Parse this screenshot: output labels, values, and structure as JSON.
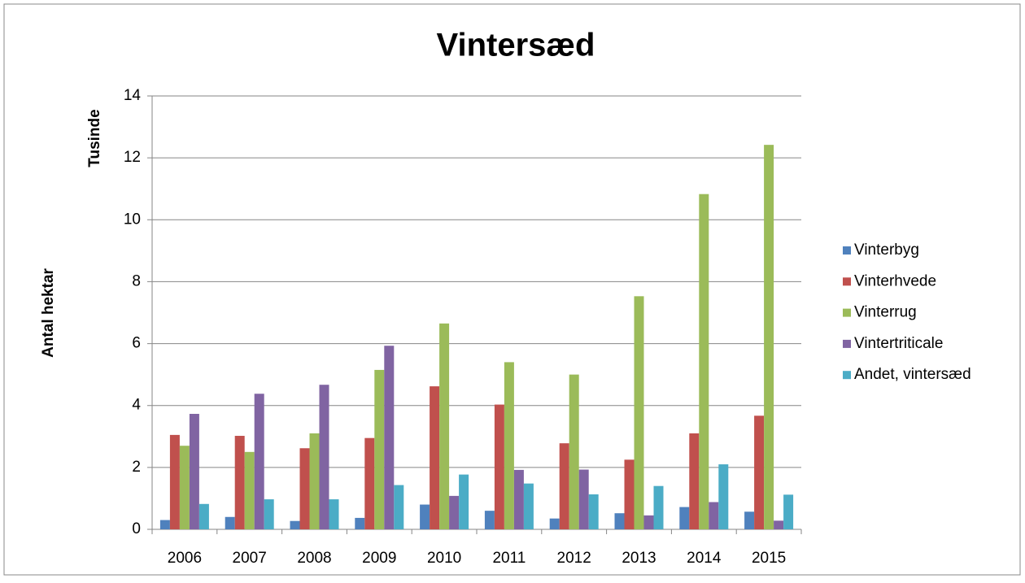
{
  "chart_data": {
    "type": "bar",
    "title": "Vintersæd",
    "y_label": "Antal hektar",
    "y_unit_label": "Tusinde",
    "categories": [
      "2006",
      "2007",
      "2008",
      "2009",
      "2010",
      "2011",
      "2012",
      "2013",
      "2014",
      "2015"
    ],
    "series": [
      {
        "name": "Vinterbyg",
        "color": "#4f81bd",
        "values": [
          0.3,
          0.4,
          0.27,
          0.37,
          0.8,
          0.6,
          0.35,
          0.52,
          0.72,
          0.57
        ]
      },
      {
        "name": "Vinterhvede",
        "color": "#c0504d",
        "values": [
          3.05,
          3.02,
          2.62,
          2.95,
          4.62,
          4.03,
          2.78,
          2.25,
          3.1,
          3.67
        ]
      },
      {
        "name": "Vinterrug",
        "color": "#9bbb59",
        "values": [
          2.7,
          2.5,
          3.1,
          5.15,
          6.65,
          5.4,
          5.0,
          7.53,
          10.83,
          12.42
        ]
      },
      {
        "name": "Vintertriticale",
        "color": "#8064a2",
        "values": [
          3.73,
          4.38,
          4.67,
          5.93,
          1.08,
          1.92,
          1.93,
          0.45,
          0.88,
          0.28
        ]
      },
      {
        "name": "Andet, vintersæd",
        "color": "#4bacc6",
        "values": [
          0.82,
          0.97,
          0.97,
          1.43,
          1.77,
          1.48,
          1.13,
          1.4,
          2.1,
          1.12
        ]
      }
    ],
    "ylim": [
      0,
      14
    ],
    "yticks": [
      0,
      2,
      4,
      6,
      8,
      10,
      12,
      14
    ],
    "grid": true,
    "legend": "right"
  }
}
